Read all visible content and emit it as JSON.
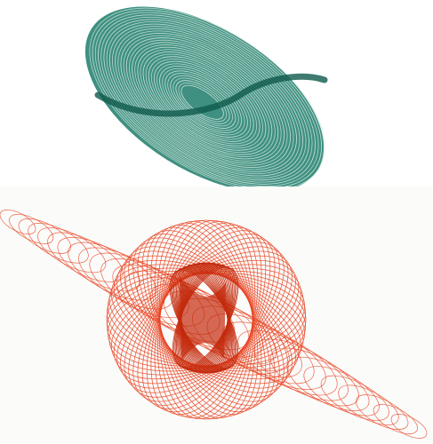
{
  "artwork": {
    "upper_figure": {
      "subject": "harmonograph-ellipse-drawing",
      "color": "#1d7c6a",
      "shadow_color": "#0f5a4b"
    },
    "lower_figure": {
      "subject": "harmonograph-rosette-drawing",
      "color": "#e8401c",
      "shadow_color": "#c32a0c"
    },
    "background_color": "#ffffff"
  }
}
